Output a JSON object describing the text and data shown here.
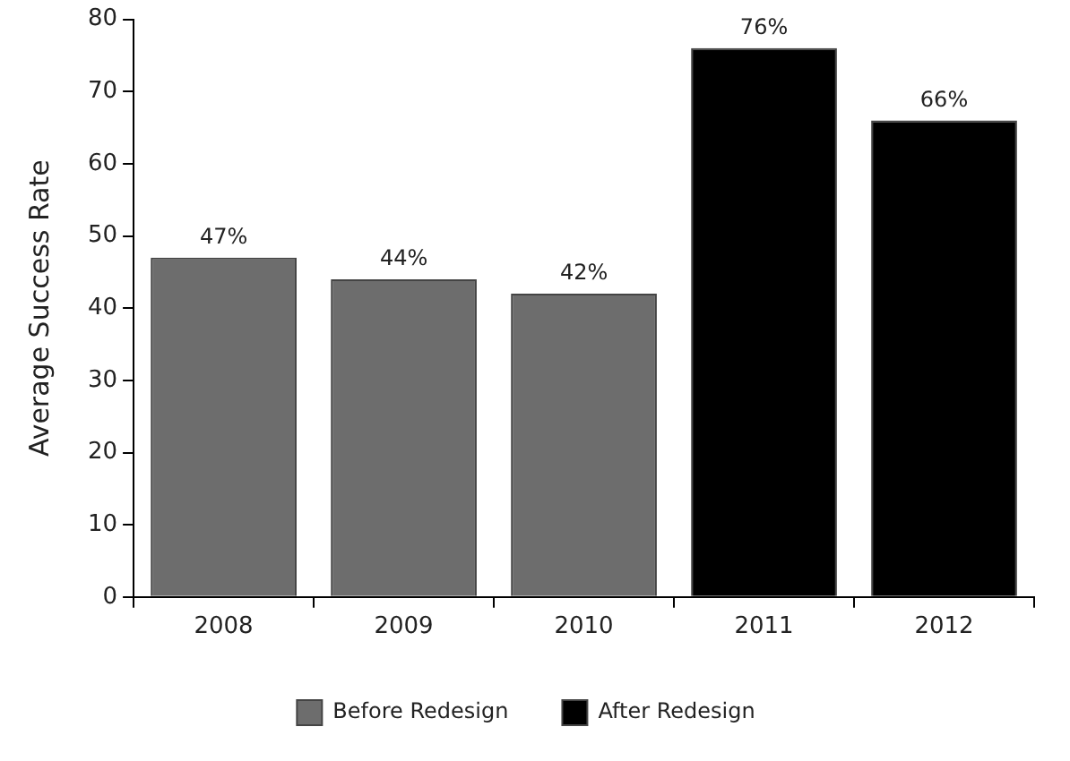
{
  "chart_data": {
    "type": "bar",
    "ylabel": "Average Success Rate",
    "categories": [
      "2008",
      "2009",
      "2010",
      "2011",
      "2012"
    ],
    "series": [
      {
        "name": "Before Redesign",
        "color": "#6d6d6d",
        "values": [
          47,
          44,
          42,
          null,
          null
        ],
        "value_labels": [
          "47%",
          "44%",
          "42%",
          null,
          null
        ]
      },
      {
        "name": "After Redesign",
        "color": "#000000",
        "values": [
          null,
          null,
          null,
          76,
          66
        ],
        "value_labels": [
          null,
          null,
          null,
          "76%",
          "66%"
        ]
      }
    ],
    "ylim": [
      0,
      80
    ],
    "yticks": [
      0,
      10,
      20,
      30,
      40,
      50,
      60,
      70,
      80
    ],
    "grid": false,
    "legend": "bottom"
  }
}
